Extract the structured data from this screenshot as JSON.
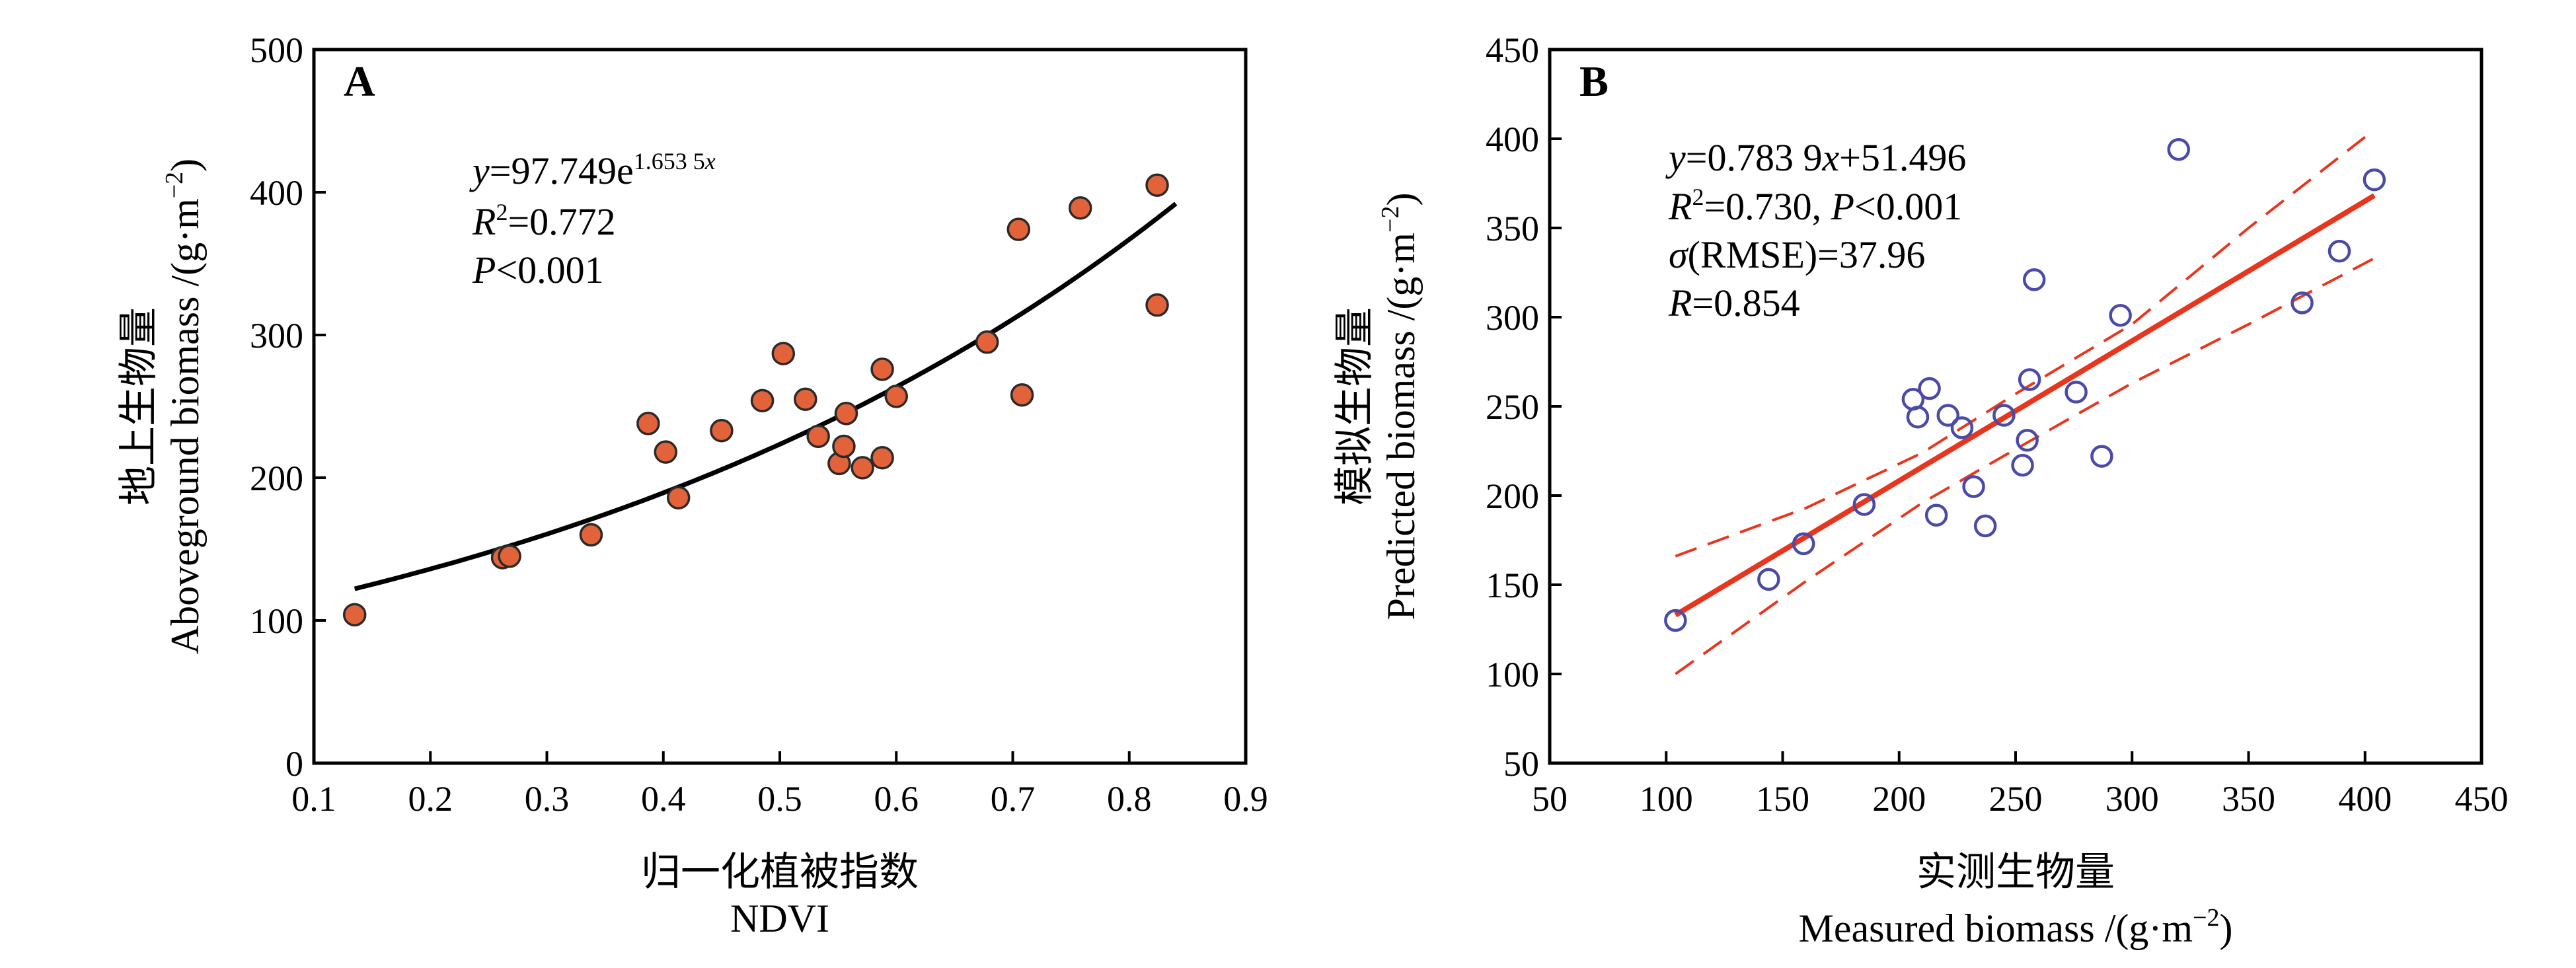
{
  "chart_data": [
    {
      "type": "scatter",
      "panel_label": "A",
      "xlabel_cn": "归一化植被指数",
      "xlabel": "NDVI",
      "ylabel_cn": "地上生物量",
      "ylabel": "Aboveground biomass /(g·m",
      "ylabel_exp": "−2",
      "ylabel_close": ")",
      "xlim": [
        0.1,
        0.9
      ],
      "ylim": [
        0,
        500
      ],
      "xticks": [
        0.1,
        0.2,
        0.3,
        0.4,
        0.5,
        0.6,
        0.7,
        0.8,
        0.9
      ],
      "yticks": [
        0,
        100,
        200,
        300,
        400,
        500
      ],
      "marker": {
        "shape": "filled-circle",
        "fill": "#e2623a",
        "stroke": "#2a2a2a"
      },
      "fit_color": "#000000",
      "points": [
        {
          "x": 0.135,
          "y": 104
        },
        {
          "x": 0.262,
          "y": 144
        },
        {
          "x": 0.268,
          "y": 145
        },
        {
          "x": 0.338,
          "y": 160
        },
        {
          "x": 0.387,
          "y": 238
        },
        {
          "x": 0.402,
          "y": 218
        },
        {
          "x": 0.413,
          "y": 186
        },
        {
          "x": 0.45,
          "y": 233
        },
        {
          "x": 0.485,
          "y": 254
        },
        {
          "x": 0.503,
          "y": 287
        },
        {
          "x": 0.522,
          "y": 255
        },
        {
          "x": 0.533,
          "y": 229
        },
        {
          "x": 0.551,
          "y": 210
        },
        {
          "x": 0.555,
          "y": 222
        },
        {
          "x": 0.557,
          "y": 245
        },
        {
          "x": 0.571,
          "y": 207
        },
        {
          "x": 0.588,
          "y": 214
        },
        {
          "x": 0.588,
          "y": 276
        },
        {
          "x": 0.6,
          "y": 257
        },
        {
          "x": 0.678,
          "y": 295
        },
        {
          "x": 0.705,
          "y": 374
        },
        {
          "x": 0.708,
          "y": 258
        },
        {
          "x": 0.758,
          "y": 389
        },
        {
          "x": 0.824,
          "y": 405
        },
        {
          "x": 0.824,
          "y": 321
        }
      ],
      "fit": {
        "model": "exponential",
        "a": 97.749,
        "b": 1.6535,
        "x_range": [
          0.135,
          0.84
        ]
      },
      "annotation": {
        "eq_y": "y",
        "eq_rhs": "=97.749e",
        "eq_exp": "1.653 5",
        "eq_exp_x": "x",
        "r2_sym": "R",
        "r2_sup": "2",
        "r2_val": "=0.772",
        "p_sym": "P",
        "p_val": "<0.001"
      }
    },
    {
      "type": "scatter",
      "panel_label": "B",
      "xlabel_cn": "实测生物量",
      "xlabel": "Measured biomass /(g·m",
      "xlabel_exp": "−2",
      "xlabel_close": ")",
      "ylabel_cn": "模拟生物量",
      "ylabel": "Predicted biomass /(g·m",
      "ylabel_exp": "−2",
      "ylabel_close": ")",
      "xlim": [
        50,
        450
      ],
      "ylim": [
        50,
        450
      ],
      "xticks": [
        50,
        100,
        150,
        200,
        250,
        300,
        350,
        400,
        450
      ],
      "yticks": [
        50,
        100,
        150,
        200,
        250,
        300,
        350,
        400,
        450
      ],
      "marker": {
        "shape": "open-circle",
        "stroke": "#4a4aa8"
      },
      "fit_color": "#e8361e",
      "points": [
        {
          "x": 104,
          "y": 130
        },
        {
          "x": 144,
          "y": 153
        },
        {
          "x": 159,
          "y": 173
        },
        {
          "x": 185,
          "y": 195
        },
        {
          "x": 206,
          "y": 254
        },
        {
          "x": 208,
          "y": 244
        },
        {
          "x": 213,
          "y": 260
        },
        {
          "x": 216,
          "y": 189
        },
        {
          "x": 221,
          "y": 245
        },
        {
          "x": 227,
          "y": 238
        },
        {
          "x": 232,
          "y": 205
        },
        {
          "x": 237,
          "y": 183
        },
        {
          "x": 245,
          "y": 245
        },
        {
          "x": 253,
          "y": 217
        },
        {
          "x": 255,
          "y": 231
        },
        {
          "x": 256,
          "y": 265
        },
        {
          "x": 258,
          "y": 321
        },
        {
          "x": 276,
          "y": 258
        },
        {
          "x": 287,
          "y": 222
        },
        {
          "x": 295,
          "y": 301
        },
        {
          "x": 320,
          "y": 394
        },
        {
          "x": 373,
          "y": 308
        },
        {
          "x": 389,
          "y": 337
        },
        {
          "x": 404,
          "y": 377
        }
      ],
      "fit": {
        "model": "linear",
        "slope": 0.7839,
        "intercept": 51.496,
        "x_range": [
          104,
          404
        ]
      },
      "confidence_band": {
        "upper": {
          "x": [
            104,
            160,
            210,
            250,
            300,
            350,
            404
          ],
          "y": [
            166,
            193,
            224,
            257,
            296,
            350,
            405
          ]
        },
        "lower": {
          "x": [
            104,
            160,
            210,
            250,
            300,
            350,
            404
          ],
          "y": [
            100,
            152,
            196,
            226,
            263,
            296,
            333
          ]
        }
      },
      "annotation": {
        "eq_y": "y",
        "eq_rhs1": "=0.783 9",
        "eq_x": "x",
        "eq_rhs2": "+51.496",
        "r2_sym": "R",
        "r2_sup": "2",
        "r2_val": "=0.730, ",
        "p_sym": "P",
        "p_val": "<0.001",
        "sigma_sym": "σ",
        "sigma_rest": "(RMSE)=37.96",
        "r_sym": "R",
        "r_val": "=0.854"
      }
    }
  ]
}
